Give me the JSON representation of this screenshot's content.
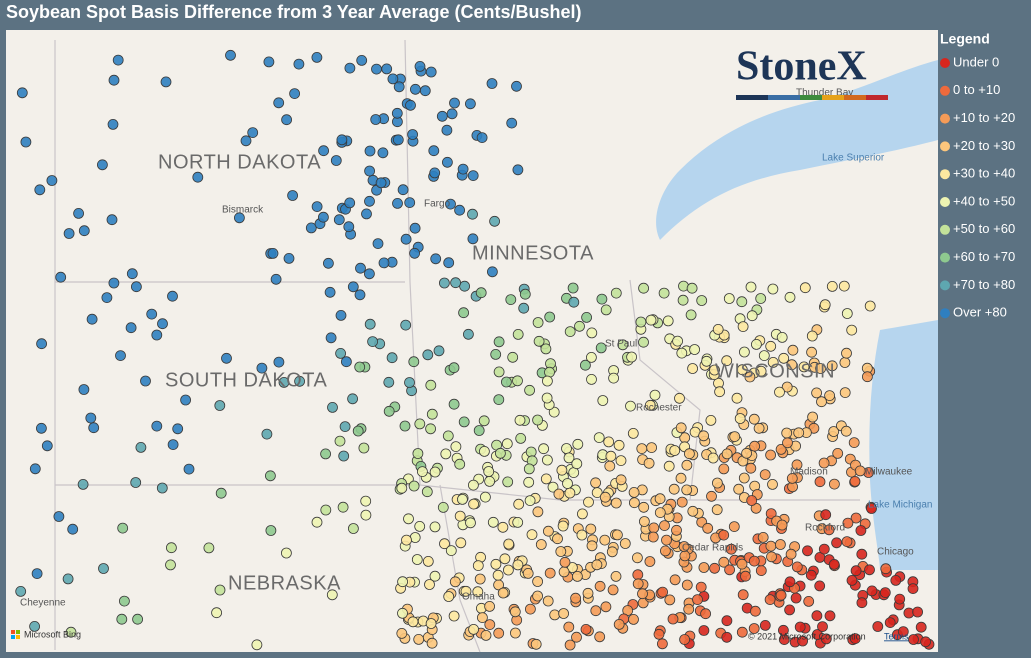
{
  "header": {
    "title": "Soybean Spot Basis Difference from 3 Year Average (Cents/Bushel)"
  },
  "logo": "StoneX",
  "legend": {
    "title": "Legend",
    "items": [
      {
        "label": "Under 0",
        "color": "#d7261e"
      },
      {
        "label": "0 to +10",
        "color": "#ee6a3c"
      },
      {
        "label": "+10 to +20",
        "color": "#f59b57"
      },
      {
        "label": "+20 to +30",
        "color": "#fcc67c"
      },
      {
        "label": "+30 to +40",
        "color": "#fde8a0"
      },
      {
        "label": "+40 to +50",
        "color": "#eef4b2"
      },
      {
        "label": "+50 to +60",
        "color": "#c3e29a"
      },
      {
        "label": "+60 to +70",
        "color": "#8ec98f"
      },
      {
        "label": "+70 to +80",
        "color": "#5ea7b0"
      },
      {
        "label": "Over +80",
        "color": "#2f7fc0"
      }
    ]
  },
  "map_labels": {
    "states": [
      "NORTH DAKOTA",
      "SOUTH DAKOTA",
      "MINNESOTA",
      "WISCONSIN",
      "NEBRASKA"
    ],
    "cities": [
      "Bismarck",
      "Fargo",
      "St Paul",
      "Rochester",
      "Madison",
      "Milwaukee",
      "Rockford",
      "Cedar Rapids",
      "Chicago",
      "Omaha",
      "Cheyenne",
      "Thunder Bay"
    ],
    "water": [
      "Lake Superior",
      "Lake Michigan"
    ]
  },
  "attribution": {
    "provider": "Microsoft Bing",
    "copyright": "© 2021 Microsoft Corporation",
    "terms": "Terms"
  }
}
